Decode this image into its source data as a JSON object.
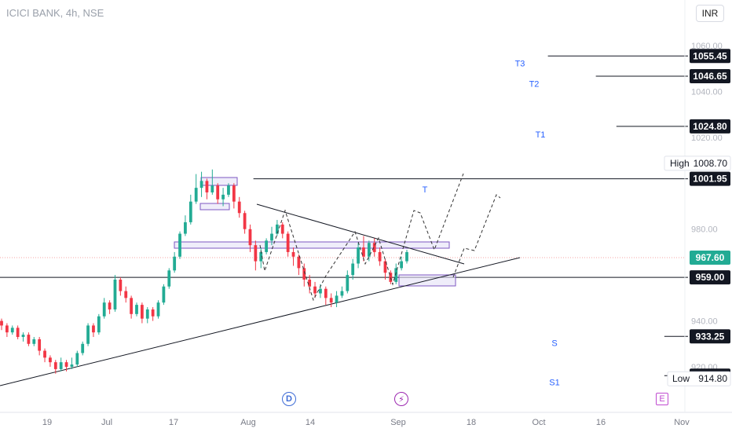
{
  "header": {
    "title": "ICICI BANK, 4h, NSE",
    "currency_button": "INR"
  },
  "events": {
    "dividend": "D",
    "split": "⚡",
    "earnings": "E"
  },
  "colors": {
    "up": "#22ab94",
    "down": "#f23645",
    "line": "#131722",
    "target_text": "#2962ff",
    "zone_fill": "#e4e1f6",
    "zone_stroke": "#7e57c2",
    "label_bg": "#131722",
    "current_bg": "#22ab94"
  },
  "chart_data": {
    "type": "candlestick",
    "title": "ICICI BANK, 4h, NSE",
    "ylim": [
      898,
      1066
    ],
    "y_ticks": [
      {
        "value": 1060,
        "label": "1060.00"
      },
      {
        "value": 1040,
        "label": "1040.00"
      },
      {
        "value": 1020,
        "label": "1020.00"
      },
      {
        "value": 980,
        "label": "980.00"
      },
      {
        "value": 940,
        "label": "940.00"
      },
      {
        "value": 920,
        "label": "920.00"
      }
    ],
    "x_ticks": [
      "19",
      "Jul",
      "17",
      "Aug",
      "14",
      "Sep",
      "18",
      "Oct",
      "16",
      "Nov"
    ],
    "levels": [
      {
        "value": 1055.45,
        "label": "1055.45",
        "target": "T3",
        "from": 80
      },
      {
        "value": 1046.65,
        "label": "1046.65",
        "target": "T2",
        "from": 87
      },
      {
        "value": 1024.8,
        "label": "1024.80",
        "target": "T1",
        "from": 90
      },
      {
        "value": 1001.95,
        "label": "1001.95",
        "target": "T",
        "from": 37
      },
      {
        "value": 959.0,
        "label": "959.00",
        "target": "",
        "from": 0
      },
      {
        "value": 933.25,
        "label": "933.25",
        "target": "S",
        "from": 97
      },
      {
        "value": 916.15,
        "label": "916.15",
        "target": "S1",
        "from": 97
      }
    ],
    "current_price": {
      "value": 967.6,
      "label": "967.60"
    },
    "high": {
      "label": "High",
      "value": "1008.70"
    },
    "low": {
      "label": "Low",
      "value": "914.80"
    },
    "candles": [
      [
        940,
        938,
        941,
        936
      ],
      [
        938,
        935,
        939,
        933
      ],
      [
        935,
        937,
        938,
        934
      ],
      [
        937,
        933,
        938,
        932
      ],
      [
        933,
        934,
        935,
        931
      ],
      [
        934,
        930,
        935,
        929
      ],
      [
        930,
        932,
        933,
        929
      ],
      [
        932,
        927,
        933,
        925
      ],
      [
        927,
        924,
        928,
        922
      ],
      [
        924,
        922,
        925,
        920
      ],
      [
        922,
        919,
        923,
        917
      ],
      [
        919,
        922,
        924,
        918
      ],
      [
        922,
        920,
        923,
        918
      ],
      [
        920,
        921,
        924,
        919
      ],
      [
        921,
        926,
        927,
        920
      ],
      [
        926,
        930,
        931,
        925
      ],
      [
        930,
        938,
        939,
        929
      ],
      [
        938,
        935,
        939,
        933
      ],
      [
        935,
        942,
        943,
        934
      ],
      [
        942,
        948,
        950,
        941
      ],
      [
        948,
        945,
        949,
        943
      ],
      [
        945,
        958,
        960,
        944
      ],
      [
        958,
        953,
        959,
        951
      ],
      [
        953,
        950,
        955,
        948
      ],
      [
        950,
        943,
        951,
        941
      ],
      [
        943,
        947,
        948,
        942
      ],
      [
        947,
        941,
        948,
        939
      ],
      [
        941,
        945,
        946,
        939
      ],
      [
        945,
        942,
        946,
        940
      ],
      [
        942,
        948,
        949,
        941
      ],
      [
        948,
        955,
        956,
        947
      ],
      [
        955,
        962,
        963,
        954
      ],
      [
        962,
        968,
        970,
        961
      ],
      [
        968,
        978,
        979,
        967
      ],
      [
        978,
        983,
        986,
        977
      ],
      [
        983,
        992,
        995,
        982
      ],
      [
        992,
        998,
        1004,
        991
      ],
      [
        998,
        1001,
        1005,
        994
      ],
      [
        1001,
        996,
        1002,
        993
      ],
      [
        996,
        999,
        1006,
        995
      ],
      [
        999,
        993,
        1000,
        991
      ],
      [
        993,
        995,
        998,
        990
      ],
      [
        995,
        999,
        1000,
        994
      ],
      [
        999,
        992,
        1000,
        989
      ],
      [
        992,
        987,
        994,
        985
      ],
      [
        987,
        980,
        988,
        978
      ],
      [
        980,
        973,
        982,
        970
      ],
      [
        973,
        966,
        975,
        962
      ],
      [
        966,
        970,
        972,
        963
      ],
      [
        970,
        975,
        976,
        969
      ],
      [
        975,
        978,
        981,
        973
      ],
      [
        978,
        982,
        984,
        977
      ],
      [
        982,
        978,
        983,
        976
      ],
      [
        978,
        970,
        979,
        968
      ],
      [
        970,
        968,
        972,
        964
      ],
      [
        968,
        963,
        969,
        960
      ],
      [
        963,
        958,
        965,
        955
      ],
      [
        958,
        955,
        960,
        952
      ],
      [
        955,
        952,
        957,
        950
      ],
      [
        952,
        954,
        956,
        950
      ],
      [
        954,
        950,
        955,
        947
      ],
      [
        950,
        948,
        952,
        946
      ],
      [
        948,
        951,
        953,
        946
      ],
      [
        951,
        953,
        955,
        950
      ],
      [
        953,
        960,
        962,
        952
      ],
      [
        960,
        965,
        967,
        958
      ],
      [
        965,
        972,
        974,
        963
      ],
      [
        972,
        968,
        977,
        966
      ],
      [
        968,
        974,
        975,
        966
      ],
      [
        974,
        970,
        976,
        968
      ],
      [
        970,
        966,
        972,
        964
      ],
      [
        966,
        961,
        967,
        958
      ],
      [
        961,
        957,
        962,
        956
      ],
      [
        957,
        963,
        965,
        956
      ],
      [
        963,
        966,
        968,
        962
      ],
      [
        966,
        970,
        971,
        965
      ]
    ]
  }
}
